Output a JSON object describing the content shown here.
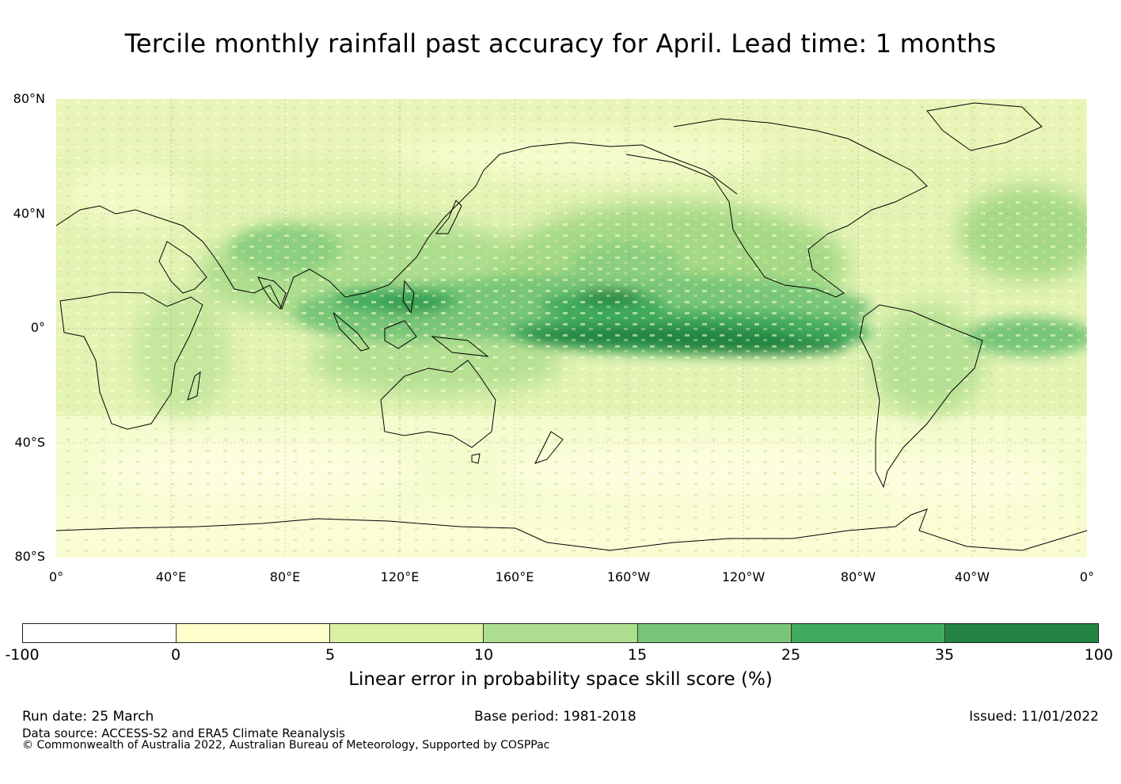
{
  "title": "Tercile monthly rainfall past accuracy for April. Lead time: 1 months",
  "map": {
    "lat_labels": [
      "80°N",
      "40°N",
      "0°",
      "40°S",
      "80°S"
    ],
    "lon_labels": [
      "0°",
      "40°E",
      "80°E",
      "120°E",
      "160°E",
      "160°W",
      "120°W",
      "80°W",
      "40°W",
      "0°"
    ],
    "gridlines": true
  },
  "colorbar": {
    "label": "Linear error in probability space skill score (%)",
    "ticks": [
      "-100",
      "0",
      "5",
      "10",
      "15",
      "25",
      "35",
      "100"
    ],
    "colors": [
      "#ffffff",
      "#ffffcc",
      "#d9f0a3",
      "#addd8e",
      "#78c679",
      "#41ab5d",
      "#238443"
    ]
  },
  "footer": {
    "run_date": "Run date: 25 March",
    "base_period": "Base period: 1981-2018",
    "issued": "Issued: 11/01/2022",
    "data_source": "Data source: ACCESS-S2 and ERA5 Climate Reanalysis",
    "copyright": "© Commonwealth of Australia 2022, Australian Bureau of Meteorology, Supported by COSPPac"
  }
}
